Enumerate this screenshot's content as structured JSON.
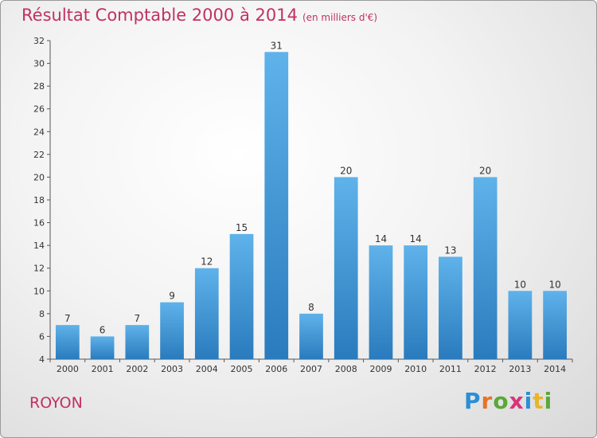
{
  "header": {
    "title": "Résultat Comptable 2000 à 2014",
    "subtitle": "(en milliers d'€)"
  },
  "footer": {
    "city": "ROYON",
    "logo": "Proxiti"
  },
  "colors": {
    "accent": "#c0325f",
    "bar_top": "#5fb2ea",
    "bar_bottom": "#2a7bbd"
  },
  "chart_data": {
    "type": "bar",
    "title": "Résultat Comptable 2000 à 2014",
    "subtitle": "(en milliers d'€)",
    "categories": [
      "2000",
      "2001",
      "2002",
      "2003",
      "2004",
      "2005",
      "2006",
      "2007",
      "2008",
      "2009",
      "2010",
      "2011",
      "2012",
      "2013",
      "2014"
    ],
    "values": [
      7,
      6,
      7,
      9,
      12,
      15,
      31,
      8,
      20,
      14,
      14,
      13,
      20,
      10,
      10
    ],
    "xlabel": "",
    "ylabel": "",
    "ylim": [
      4,
      32
    ],
    "yticks": [
      4,
      6,
      8,
      10,
      12,
      14,
      16,
      18,
      20,
      22,
      24,
      26,
      28,
      30,
      32
    ],
    "grid": false,
    "legend": "none"
  }
}
